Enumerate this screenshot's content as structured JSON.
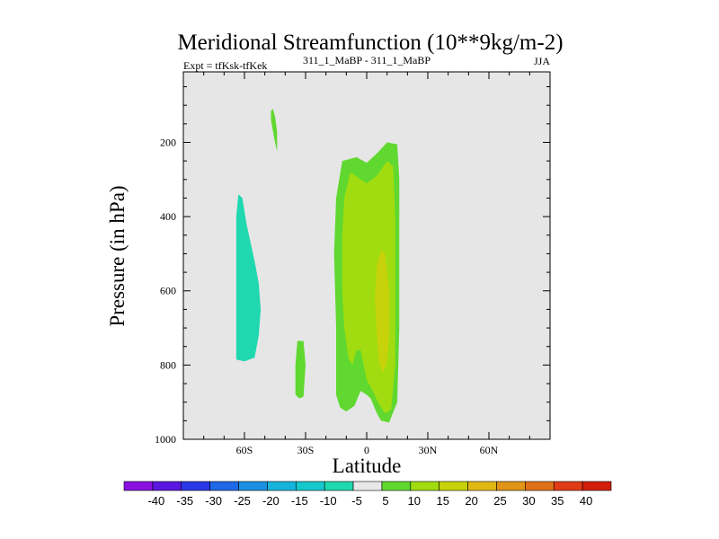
{
  "chart_data": {
    "type": "contour",
    "title": "Meridional Streamfunction (10**9kg/m-2)",
    "subtitle_left": "Expt = tfKsk-tfKek",
    "subtitle_center": "311_1_MaBP - 311_1_MaBP",
    "subtitle_right": "JJA",
    "xlabel": "Latitude",
    "ylabel": "Pressure (in hPa)",
    "xlim": [
      -90,
      90
    ],
    "ylim": [
      1000,
      10
    ],
    "x_ticks": [
      {
        "value": -60,
        "label": "60S"
      },
      {
        "value": -30,
        "label": "30S"
      },
      {
        "value": 0,
        "label": "0"
      },
      {
        "value": 30,
        "label": "30N"
      },
      {
        "value": 60,
        "label": "60N"
      }
    ],
    "y_ticks": [
      {
        "value": 200,
        "label": "200"
      },
      {
        "value": 400,
        "label": "400"
      },
      {
        "value": 600,
        "label": "600"
      },
      {
        "value": 800,
        "label": "800"
      },
      {
        "value": 1000,
        "label": "1000"
      }
    ],
    "background_color": "#e6e6e6",
    "regions": [
      {
        "name": "neg-cell-60S",
        "level": "-10 to -5",
        "color": "#20d8b0",
        "points": [
          [
            -63,
            340
          ],
          [
            -61,
            350
          ],
          [
            -59,
            420
          ],
          [
            -57,
            470
          ],
          [
            -55,
            520
          ],
          [
            -53,
            580
          ],
          [
            -52,
            650
          ],
          [
            -53,
            720
          ],
          [
            -55,
            780
          ],
          [
            -60,
            790
          ],
          [
            -64,
            785
          ],
          [
            -64,
            700
          ],
          [
            -64,
            550
          ],
          [
            -64,
            400
          ]
        ]
      },
      {
        "name": "pos-cell-upper-45S",
        "level": "5 to 10",
        "color": "#60d830",
        "points": [
          [
            -46,
            110
          ],
          [
            -45,
            130
          ],
          [
            -44,
            170
          ],
          [
            -44,
            225
          ],
          [
            -45,
            200
          ],
          [
            -46,
            170
          ],
          [
            -47,
            140
          ],
          [
            -47,
            115
          ]
        ]
      },
      {
        "name": "pos-cell-lower-30S",
        "level": "5 to 10",
        "color": "#60d830",
        "points": [
          [
            -34,
            735
          ],
          [
            -31,
            735
          ],
          [
            -30,
            800
          ],
          [
            -31,
            885
          ],
          [
            -33,
            890
          ],
          [
            -35,
            880
          ],
          [
            -35,
            800
          ]
        ]
      },
      {
        "name": "pos-cell-tropics-outer",
        "level": "5 to 10",
        "color": "#60d830",
        "points": [
          [
            -12,
            250
          ],
          [
            -5,
            240
          ],
          [
            0,
            255
          ],
          [
            5,
            230
          ],
          [
            10,
            200
          ],
          [
            15,
            205
          ],
          [
            16,
            300
          ],
          [
            16,
            500
          ],
          [
            16,
            700
          ],
          [
            15,
            900
          ],
          [
            11,
            955
          ],
          [
            7,
            950
          ],
          [
            5,
            930
          ],
          [
            2,
            890
          ],
          [
            0,
            880
          ],
          [
            -3,
            870
          ],
          [
            -6,
            910
          ],
          [
            -10,
            925
          ],
          [
            -13,
            915
          ],
          [
            -15,
            880
          ],
          [
            -15,
            700
          ],
          [
            -16,
            500
          ],
          [
            -15,
            350
          ]
        ]
      },
      {
        "name": "pos-cell-tropics-inner",
        "level": "10 to 15",
        "color": "#a0dc10",
        "points": [
          [
            -8,
            280
          ],
          [
            -3,
            300
          ],
          [
            0,
            310
          ],
          [
            5,
            290
          ],
          [
            10,
            250
          ],
          [
            13,
            265
          ],
          [
            14,
            400
          ],
          [
            14,
            600
          ],
          [
            14,
            800
          ],
          [
            12,
            920
          ],
          [
            9,
            930
          ],
          [
            6,
            905
          ],
          [
            3,
            870
          ],
          [
            0,
            840
          ],
          [
            -3,
            760
          ],
          [
            -5,
            760
          ],
          [
            -7,
            800
          ],
          [
            -9,
            780
          ],
          [
            -11,
            700
          ],
          [
            -12,
            600
          ],
          [
            -12,
            450
          ],
          [
            -11,
            350
          ]
        ]
      },
      {
        "name": "pos-cell-tropics-core",
        "level": "15 to 20",
        "color": "#c8d20a",
        "points": [
          [
            5,
            530
          ],
          [
            7,
            490
          ],
          [
            9,
            500
          ],
          [
            11,
            600
          ],
          [
            11,
            720
          ],
          [
            10,
            790
          ],
          [
            8,
            820
          ],
          [
            6,
            790
          ],
          [
            5,
            720
          ],
          [
            4,
            620
          ]
        ]
      }
    ],
    "colorbar": {
      "labels": [
        "-40",
        "-35",
        "-30",
        "-25",
        "-20",
        "-15",
        "-10",
        "-5",
        "5",
        "10",
        "15",
        "20",
        "25",
        "30",
        "35",
        "40"
      ],
      "colors": [
        "#8a10e0",
        "#5a18e0",
        "#2a38e8",
        "#1f68e8",
        "#1c90e0",
        "#16b4dc",
        "#14c8cc",
        "#20d8b0",
        "#e8e8e8",
        "#60d830",
        "#a0dc10",
        "#c8d20a",
        "#e0b814",
        "#e09418",
        "#e07018",
        "#e03a18",
        "#d01e0a"
      ]
    }
  }
}
